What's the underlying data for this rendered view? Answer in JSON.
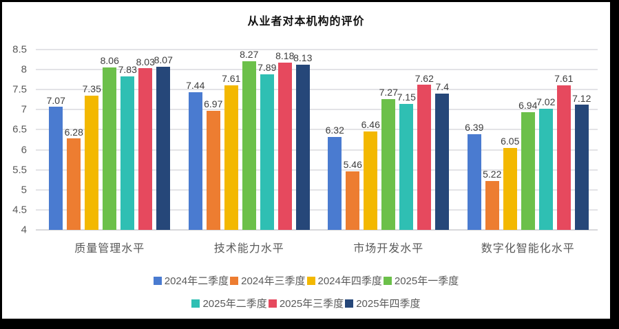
{
  "title": "从业者对本机构的评价",
  "chart_data": {
    "type": "bar",
    "title": "从业者对本机构的评价",
    "categories": [
      "质量管理水平",
      "技术能力水平",
      "市场开发水平",
      "数字化智能化水平"
    ],
    "series": [
      {
        "name": "2024年二季度",
        "color": "#4A7BD0",
        "values": [
          7.07,
          7.44,
          6.32,
          6.39
        ]
      },
      {
        "name": "2024年三季度",
        "color": "#ED7D31",
        "values": [
          6.28,
          6.97,
          5.46,
          5.22
        ]
      },
      {
        "name": "2024年四季度",
        "color": "#F3B800",
        "values": [
          7.35,
          7.61,
          6.46,
          6.05
        ]
      },
      {
        "name": "2025年一季度",
        "color": "#6CC04A",
        "values": [
          8.06,
          8.27,
          7.27,
          6.94
        ]
      },
      {
        "name": "2025年二季度",
        "color": "#2FBFB3",
        "values": [
          7.83,
          7.89,
          7.15,
          7.02
        ]
      },
      {
        "name": "2025年三季度",
        "color": "#E6495E",
        "values": [
          8.03,
          8.18,
          7.62,
          7.61
        ]
      },
      {
        "name": "2025年四季度",
        "color": "#264779",
        "values": [
          8.07,
          8.13,
          7.4,
          7.12
        ]
      }
    ],
    "y_axis": {
      "min": 4,
      "max": 8.5,
      "step": 0.5,
      "ticks": [
        "4",
        "4.5",
        "5",
        "5.5",
        "6",
        "6.5",
        "7",
        "7.5",
        "8",
        "8.5"
      ]
    },
    "grid": true,
    "data_labels": true,
    "legend_position": "bottom",
    "legend_rows": [
      [
        0,
        1,
        2,
        3
      ],
      [
        4,
        5,
        6
      ]
    ]
  }
}
